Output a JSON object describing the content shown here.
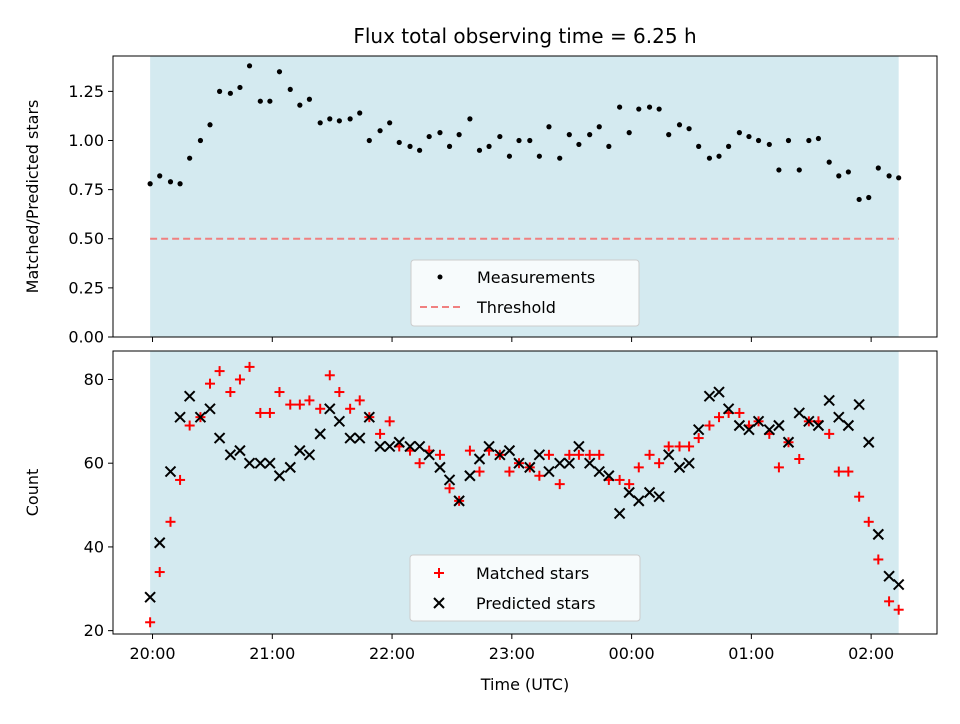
{
  "figure": {
    "title": "Flux total observing time = 6.25 h",
    "xlabel": "Time (UTC)"
  },
  "colors": {
    "shade": "#d4eaf0",
    "threshold": "#f08080",
    "matched": "#ff0000",
    "predicted": "#000000",
    "measurement": "#000000"
  },
  "chart_data": [
    {
      "type": "scatter",
      "panel": "top",
      "title": "Flux total observing time = 6.25 h",
      "ylabel": "Matched/Predicted stars",
      "xlabel": "",
      "x_unit": "hours since 20:00 UTC",
      "xlim": [
        -0.33,
        6.55
      ],
      "ylim": [
        0,
        1.43
      ],
      "yticks": [
        0.0,
        0.25,
        0.5,
        0.75,
        1.0,
        1.25
      ],
      "ytick_labels": [
        "0.00",
        "0.25",
        "0.50",
        "0.75",
        "1.00",
        "1.25"
      ],
      "shaded_span": [
        -0.02,
        6.23
      ],
      "threshold": 0.5,
      "legend": {
        "position": "bottom-center",
        "entries": [
          "Measurements",
          "Threshold"
        ]
      },
      "x": [
        -0.02,
        0.06,
        0.15,
        0.23,
        0.31,
        0.4,
        0.48,
        0.56,
        0.65,
        0.73,
        0.81,
        0.9,
        0.98,
        1.06,
        1.15,
        1.23,
        1.31,
        1.4,
        1.48,
        1.56,
        1.65,
        1.73,
        1.81,
        1.9,
        1.98,
        2.06,
        2.15,
        2.23,
        2.31,
        2.4,
        2.48,
        2.56,
        2.65,
        2.73,
        2.81,
        2.9,
        2.98,
        3.06,
        3.15,
        3.23,
        3.31,
        3.4,
        3.48,
        3.56,
        3.65,
        3.73,
        3.81,
        3.9,
        3.98,
        4.06,
        4.15,
        4.23,
        4.31,
        4.4,
        4.48,
        4.56,
        4.65,
        4.73,
        4.81,
        4.9,
        4.98,
        5.06,
        5.15,
        5.23,
        5.31,
        5.4,
        5.48,
        5.56,
        5.65,
        5.73,
        5.81,
        5.9,
        5.98,
        6.06,
        6.15,
        6.23
      ],
      "y": [
        0.78,
        0.82,
        0.79,
        0.78,
        0.91,
        1.0,
        1.08,
        1.25,
        1.24,
        1.27,
        1.38,
        1.2,
        1.2,
        1.35,
        1.26,
        1.18,
        1.21,
        1.09,
        1.11,
        1.1,
        1.11,
        1.14,
        1.0,
        1.05,
        1.09,
        0.99,
        0.97,
        0.95,
        1.02,
        1.04,
        0.97,
        1.03,
        1.11,
        0.95,
        0.97,
        1.02,
        0.92,
        1.0,
        1.0,
        0.92,
        1.07,
        0.91,
        1.03,
        0.98,
        1.03,
        1.07,
        0.97,
        1.17,
        1.04,
        1.16,
        1.17,
        1.16,
        1.03,
        1.08,
        1.06,
        0.97,
        0.91,
        0.92,
        0.97,
        1.04,
        1.02,
        1.0,
        0.98,
        0.85,
        1.0,
        0.85,
        1.0,
        1.01,
        0.89,
        0.82,
        0.84,
        0.7,
        0.71,
        0.86,
        0.82,
        0.81
      ]
    },
    {
      "type": "scatter",
      "panel": "bottom",
      "title": "",
      "ylabel": "Count",
      "xlabel": "Time (UTC)",
      "x_unit": "hours since 20:00 UTC",
      "xlim": [
        -0.33,
        6.55
      ],
      "ylim": [
        19.2,
        86.8
      ],
      "yticks": [
        20,
        40,
        60,
        80
      ],
      "ytick_labels": [
        "20",
        "40",
        "60",
        "80"
      ],
      "xticks": [
        0,
        1,
        2,
        3,
        4,
        5,
        6
      ],
      "xtick_labels": [
        "20:00",
        "21:00",
        "22:00",
        "23:00",
        "00:00",
        "01:00",
        "02:00"
      ],
      "shaded_span": [
        -0.02,
        6.23
      ],
      "legend": {
        "position": "bottom-center",
        "entries": [
          "Matched stars",
          "Predicted stars"
        ]
      },
      "series": [
        {
          "name": "Matched stars",
          "marker": "plus",
          "x": [
            -0.02,
            0.06,
            0.15,
            0.23,
            0.31,
            0.4,
            0.48,
            0.56,
            0.65,
            0.73,
            0.81,
            0.9,
            0.98,
            1.06,
            1.15,
            1.23,
            1.31,
            1.4,
            1.48,
            1.56,
            1.65,
            1.73,
            1.81,
            1.9,
            1.98,
            2.06,
            2.15,
            2.23,
            2.31,
            2.4,
            2.48,
            2.56,
            2.65,
            2.73,
            2.81,
            2.9,
            2.98,
            3.06,
            3.15,
            3.23,
            3.31,
            3.4,
            3.48,
            3.56,
            3.65,
            3.73,
            3.81,
            3.9,
            3.98,
            4.06,
            4.15,
            4.23,
            4.31,
            4.4,
            4.48,
            4.56,
            4.65,
            4.73,
            4.81,
            4.9,
            4.98,
            5.06,
            5.15,
            5.23,
            5.31,
            5.4,
            5.48,
            5.56,
            5.65,
            5.73,
            5.81,
            5.9,
            5.98,
            6.06,
            6.15,
            6.23
          ],
          "y": [
            22,
            34,
            46,
            56,
            69,
            71,
            79,
            82,
            77,
            80,
            83,
            72,
            72,
            77,
            74,
            74,
            75,
            73,
            81,
            77,
            73,
            75,
            71,
            67,
            70,
            64,
            63,
            60,
            63,
            62,
            54,
            51,
            63,
            58,
            63,
            62,
            58,
            60,
            59,
            57,
            62,
            55,
            62,
            62,
            62,
            62,
            56,
            56,
            55,
            59,
            62,
            60,
            64,
            64,
            64,
            66,
            69,
            71,
            72,
            72,
            69,
            70,
            67,
            59,
            65,
            61,
            70,
            70,
            67,
            58,
            58,
            52,
            46,
            37,
            27,
            25
          ]
        },
        {
          "name": "Predicted stars",
          "marker": "x",
          "x": [
            -0.02,
            0.06,
            0.15,
            0.23,
            0.31,
            0.4,
            0.48,
            0.56,
            0.65,
            0.73,
            0.81,
            0.9,
            0.98,
            1.06,
            1.15,
            1.23,
            1.31,
            1.4,
            1.48,
            1.56,
            1.65,
            1.73,
            1.81,
            1.9,
            1.98,
            2.06,
            2.15,
            2.23,
            2.31,
            2.4,
            2.48,
            2.56,
            2.65,
            2.73,
            2.81,
            2.9,
            2.98,
            3.06,
            3.15,
            3.23,
            3.31,
            3.4,
            3.48,
            3.56,
            3.65,
            3.73,
            3.81,
            3.9,
            3.98,
            4.06,
            4.15,
            4.23,
            4.31,
            4.4,
            4.48,
            4.56,
            4.65,
            4.73,
            4.81,
            4.9,
            4.98,
            5.06,
            5.15,
            5.23,
            5.31,
            5.4,
            5.48,
            5.56,
            5.65,
            5.73,
            5.81,
            5.9,
            5.98,
            6.06,
            6.15,
            6.23
          ],
          "y": [
            28,
            41,
            58,
            71,
            76,
            71,
            73,
            66,
            62,
            63,
            60,
            60,
            60,
            57,
            59,
            63,
            62,
            67,
            73,
            70,
            66,
            66,
            71,
            64,
            64,
            65,
            64,
            64,
            62,
            59,
            56,
            51,
            57,
            61,
            64,
            62,
            63,
            60,
            59,
            62,
            58,
            60,
            60,
            64,
            60,
            58,
            57,
            48,
            53,
            51,
            53,
            52,
            62,
            59,
            60,
            68,
            76,
            77,
            73,
            69,
            68,
            70,
            68,
            69,
            65,
            72,
            70,
            69,
            75,
            71,
            69,
            74,
            65,
            43,
            33,
            31
          ]
        }
      ]
    }
  ]
}
